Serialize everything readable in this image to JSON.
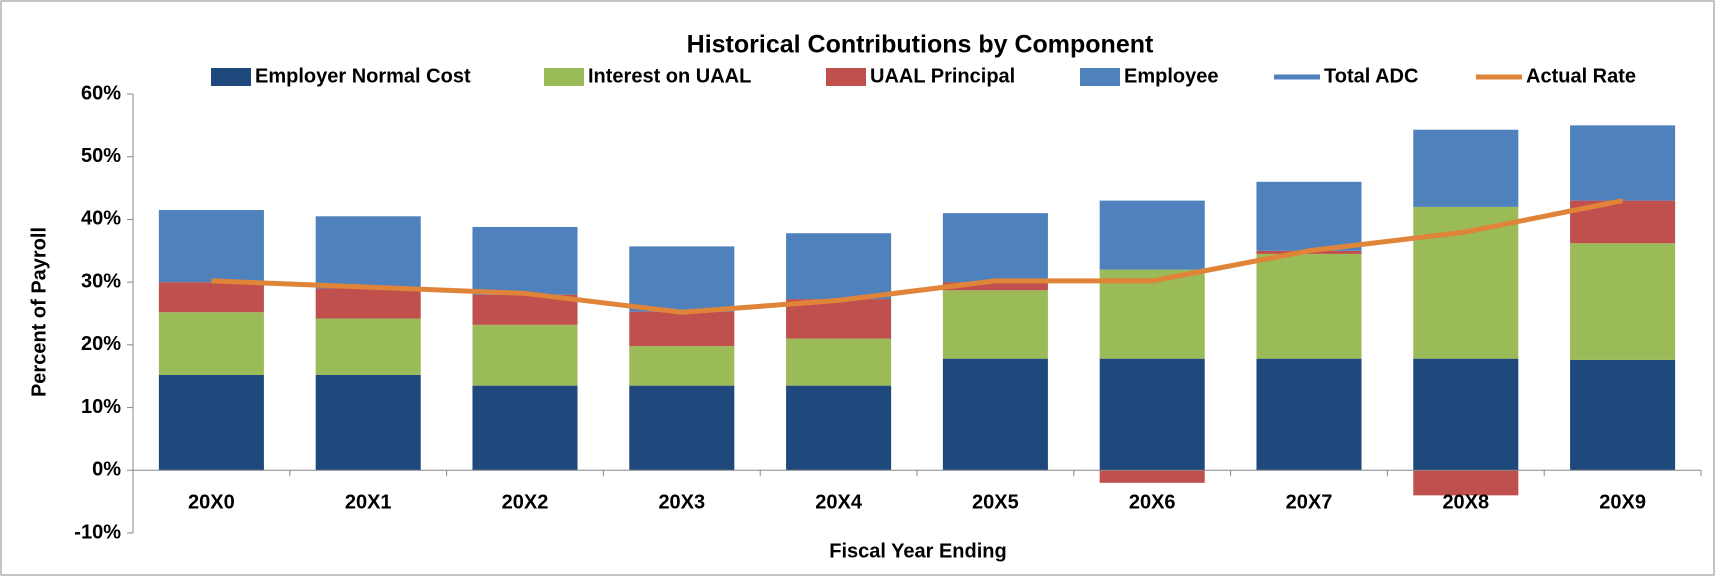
{
  "chart_data": {
    "type": "bar",
    "stacked": true,
    "title": "Historical Contributions by Component",
    "xlabel": "Fiscal Year Ending",
    "ylabel": "Percent of Payroll",
    "categories": [
      "20X0",
      "20X1",
      "20X2",
      "20X3",
      "20X4",
      "20X5",
      "20X6",
      "20X7",
      "20X8",
      "20X9"
    ],
    "series": [
      {
        "name": "Employer Normal Cost",
        "color": "#1f497d",
        "values": [
          15.2,
          15.2,
          13.5,
          13.5,
          13.5,
          17.8,
          17.8,
          17.8,
          17.8,
          17.6
        ]
      },
      {
        "name": "Interest on UAAL",
        "color": "#9bbb59",
        "values": [
          10.0,
          9.0,
          9.7,
          6.3,
          7.5,
          10.9,
          14.2,
          16.7,
          24.2,
          18.6
        ]
      },
      {
        "name": "UAAL Principal",
        "color": "#c0504d",
        "values": [
          4.8,
          4.8,
          4.8,
          5.5,
          6.3,
          1.3,
          -2.0,
          0.5,
          -4.0,
          6.8
        ]
      },
      {
        "name": "Employee",
        "color": "#4f81bd",
        "values": [
          11.5,
          11.5,
          10.8,
          10.4,
          10.5,
          11.0,
          11.0,
          11.0,
          12.3,
          12.0
        ]
      },
      {
        "name": "Total ADC",
        "color": "#4f81bd",
        "type": "line"
      },
      {
        "name": "Actual Rate",
        "color": "#e0843a",
        "type": "line",
        "values": [
          30.2,
          29.2,
          28.2,
          25.2,
          27.1,
          30.2,
          30.2,
          35.0,
          38.0,
          43.0
        ]
      }
    ],
    "ylim": [
      -10,
      60
    ],
    "yticks": [
      {
        "value": -10,
        "label": "-10%"
      },
      {
        "value": 0,
        "label": "0%"
      },
      {
        "value": 10,
        "label": "10%"
      },
      {
        "value": 20,
        "label": "20%"
      },
      {
        "value": 30,
        "label": "30%"
      },
      {
        "value": 40,
        "label": "40%"
      },
      {
        "value": 50,
        "label": "50%"
      },
      {
        "value": 60,
        "label": "60%"
      }
    ],
    "grid": false,
    "legend": "top"
  }
}
